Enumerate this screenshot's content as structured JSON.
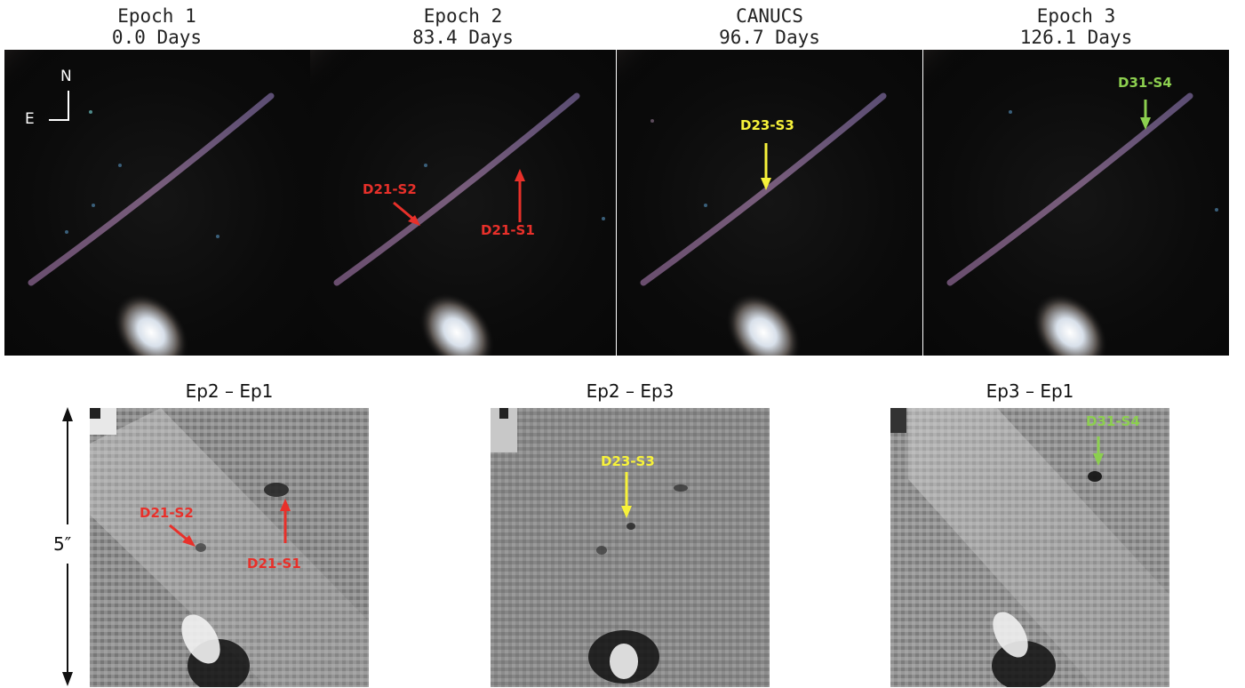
{
  "epochs": [
    {
      "name": "Epoch 1",
      "days": "0.0 Days"
    },
    {
      "name": "Epoch 2",
      "days": "83.4 Days"
    },
    {
      "name": "CANUCS",
      "days": "96.7 Days"
    },
    {
      "name": "Epoch 3",
      "days": "126.1 Days"
    }
  ],
  "compass": {
    "north": "N",
    "east": "E"
  },
  "differences": [
    {
      "label": "Ep2 – Ep1"
    },
    {
      "label": "Ep2 – Ep3"
    },
    {
      "label": "Ep3 – Ep1"
    }
  ],
  "annotations": {
    "d21_s1": "D21-S1",
    "d21_s2": "D21-S2",
    "d23_s3": "D23-S3",
    "d31_s4": "D31-S4"
  },
  "scale_bar": {
    "label": "5″"
  },
  "colors": {
    "red": "#e8302a",
    "yellow": "#f7f23a",
    "green": "#8ccf4f"
  }
}
